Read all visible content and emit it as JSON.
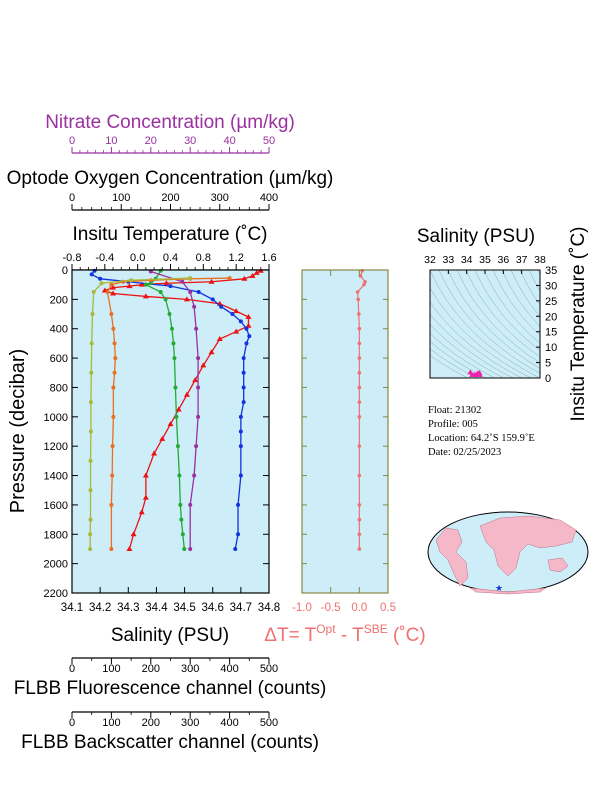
{
  "colors": {
    "panel_bg": "#cdeef8",
    "nitrate": "#9b30a0",
    "dt": "#f07070",
    "axis": "#000000",
    "frame": "#888844",
    "map_land": "#f5b8c8",
    "map_ocean": "#cdeef8",
    "series": {
      "temperature": "#ee1111",
      "salinity": "#1133dd",
      "oxygen": "#22aa33",
      "nitrate": "#9b30a0",
      "fluorescence": "#e87020",
      "backscatter": "#a8b838",
      "dt": "#f07070"
    }
  },
  "labels": {
    "nitrate_title": "Nitrate Concentration (µm/kg)",
    "oxygen_title": "Optode Oxygen Concentration (µm/kg)",
    "temperature_title": "Insitu Temperature (˚C)",
    "pressure_label": "Pressure (decibar)",
    "salinity_xlabel": "Salinity (PSU)",
    "dt_title_main": "ΔT= T",
    "dt_sup1": "Opt",
    "dt_mid": " - T",
    "dt_sup2": "SBE",
    "dt_end": " (˚C)",
    "fluor_title": "FLBB Fluorescence channel (counts)",
    "backscatter_title": "FLBB Backscatter channel (counts)",
    "ts_title": "Salinity (PSU)",
    "ts_ylabel": "Insitu Temperature (˚C)"
  },
  "info": {
    "float": "Float:  21302",
    "profile": "Profile:  005",
    "location": "Location:  64.2˚S  159.9˚E",
    "date": "Date:  02/25/2023"
  },
  "chart_data": [
    {
      "type": "line",
      "panel": "main-profile",
      "ylabel": "Pressure (decibar)",
      "ylim": [
        2200,
        0
      ],
      "yticks": [
        "0",
        "200",
        "400",
        "600",
        "800",
        "1000",
        "1200",
        "1400",
        "1600",
        "1800",
        "2000",
        "2200"
      ],
      "axes": {
        "salinity": {
          "lim": [
            34.1,
            34.8
          ],
          "ticks": [
            "34.1",
            "34.2",
            "34.3",
            "34.4",
            "34.5",
            "34.6",
            "34.7",
            "34.8"
          ]
        },
        "temperature": {
          "lim": [
            -0.8,
            1.6
          ],
          "ticks": [
            "-0.8",
            "-0.4",
            "0.0",
            "0.4",
            "0.8",
            "1.2",
            "1.6"
          ]
        },
        "oxygen": {
          "lim": [
            0,
            400
          ],
          "ticks": [
            "0",
            "100",
            "200",
            "300",
            "400"
          ]
        },
        "nitrate": {
          "lim": [
            0,
            50
          ],
          "ticks": [
            "0",
            "10",
            "20",
            "30",
            "40",
            "50"
          ]
        },
        "fluorescence": {
          "lim": [
            0,
            500
          ],
          "ticks": [
            "0",
            "100",
            "200",
            "300",
            "400",
            "500"
          ]
        },
        "backscatter": {
          "lim": [
            0,
            500
          ],
          "ticks": [
            "0",
            "100",
            "200",
            "300",
            "400",
            "500"
          ]
        }
      },
      "series": [
        {
          "axis": "temperature",
          "key": "temperature",
          "x": [
            1.5,
            1.45,
            1.4,
            1.3,
            0.9,
            0.35,
            0.05,
            -0.1,
            -0.3,
            -0.4,
            -0.3,
            0.1,
            0.6,
            1.0,
            1.2,
            1.35,
            1.35,
            1.2,
            1.0,
            0.9,
            0.8,
            0.7,
            0.6,
            0.5,
            0.4,
            0.3,
            0.2,
            0.1,
            0.1,
            0.05,
            -0.05,
            -0.1
          ],
          "y": [
            5,
            20,
            40,
            60,
            80,
            90,
            100,
            110,
            120,
            140,
            160,
            180,
            200,
            230,
            280,
            320,
            380,
            420,
            470,
            560,
            650,
            750,
            850,
            950,
            1050,
            1150,
            1250,
            1400,
            1550,
            1650,
            1800,
            1900
          ]
        },
        {
          "axis": "salinity",
          "key": "salinity",
          "x": [
            34.18,
            34.17,
            34.2,
            34.3,
            34.45,
            34.55,
            34.6,
            34.63,
            34.67,
            34.7,
            34.72,
            34.73,
            34.72,
            34.71,
            34.71,
            34.71,
            34.71,
            34.7,
            34.7,
            34.7,
            34.7,
            34.69,
            34.69,
            34.68
          ],
          "y": [
            5,
            30,
            60,
            80,
            110,
            150,
            200,
            250,
            300,
            350,
            400,
            450,
            500,
            600,
            700,
            800,
            900,
            1000,
            1100,
            1200,
            1400,
            1600,
            1800,
            1900
          ]
        },
        {
          "axis": "oxygen",
          "key": "oxygen",
          "x": [
            180,
            170,
            160,
            150,
            180,
            190,
            198,
            203,
            206,
            208,
            210,
            212,
            215,
            218,
            220,
            222,
            225,
            228
          ],
          "y": [
            5,
            60,
            90,
            100,
            150,
            200,
            300,
            400,
            500,
            600,
            800,
            1000,
            1200,
            1400,
            1600,
            1700,
            1800,
            1900
          ]
        },
        {
          "axis": "nitrate",
          "key": "nitrate",
          "x": [
            20,
            28,
            30,
            31,
            31.5,
            32,
            32,
            32,
            31.5,
            31,
            30,
            30
          ],
          "y": [
            10,
            80,
            150,
            250,
            400,
            600,
            800,
            1000,
            1200,
            1400,
            1600,
            1900
          ]
        },
        {
          "axis": "fluorescence",
          "key": "fluorescence",
          "x": [
            400,
            300,
            200,
            130,
            100,
            90,
            100,
            105,
            108,
            110,
            108,
            105,
            105,
            103,
            102,
            100,
            100
          ],
          "y": [
            55,
            60,
            70,
            80,
            100,
            150,
            300,
            400,
            500,
            600,
            700,
            800,
            1000,
            1200,
            1400,
            1600,
            1900
          ]
        },
        {
          "axis": "backscatter",
          "key": "backscatter",
          "x": [
            300,
            150,
            75,
            55,
            52,
            50,
            49,
            48,
            48,
            47,
            47,
            47,
            46,
            46
          ],
          "y": [
            55,
            70,
            90,
            150,
            300,
            500,
            700,
            900,
            1100,
            1300,
            1500,
            1700,
            1800,
            1900
          ]
        }
      ]
    },
    {
      "type": "line",
      "panel": "delta-t",
      "xlabel": "ΔT= T^Opt - T^SBE (˚C)",
      "xlim": [
        -1.0,
        0.5
      ],
      "xticks": [
        "-1.0",
        "-0.5",
        "0.0",
        "0.5"
      ],
      "ylim": [
        2200,
        0
      ],
      "series": [
        {
          "key": "dt",
          "x": [
            0.05,
            0.02,
            0.1,
            0.08,
            -0.03,
            -0.02,
            -0.01,
            0.0,
            0.0,
            0.0,
            0.0,
            0.0,
            0.0,
            0.0,
            0.0,
            0.0,
            0.0,
            0.0,
            0.0,
            0.0
          ],
          "y": [
            5,
            40,
            80,
            100,
            150,
            200,
            300,
            400,
            500,
            600,
            700,
            800,
            900,
            1000,
            1200,
            1400,
            1600,
            1700,
            1800,
            1900
          ]
        }
      ]
    },
    {
      "type": "scatter",
      "panel": "ts-diagram",
      "xlabel": "Salinity (PSU)",
      "ylabel": "Insitu Temperature (˚C)",
      "xlim": [
        32,
        38
      ],
      "xticks": [
        "32",
        "33",
        "34",
        "35",
        "36",
        "37",
        "38"
      ],
      "ylim": [
        0,
        35
      ],
      "yticks": [
        "0",
        "5",
        "10",
        "15",
        "20",
        "25",
        "30",
        "35"
      ],
      "points_x": [
        34.2,
        34.3,
        34.4,
        34.5,
        34.6,
        34.7,
        34.7,
        34.68
      ],
      "points_y": [
        1.5,
        0.5,
        -0.3,
        0.4,
        1.2,
        1.3,
        0.8,
        0.0
      ]
    }
  ]
}
